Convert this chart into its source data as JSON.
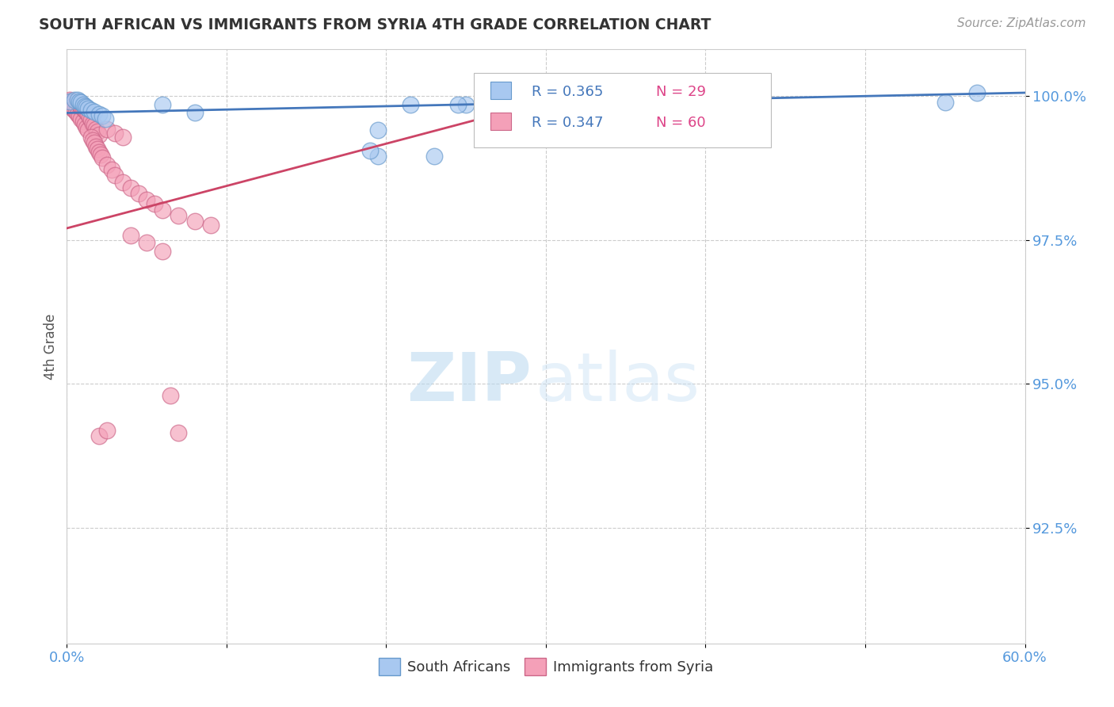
{
  "title": "SOUTH AFRICAN VS IMMIGRANTS FROM SYRIA 4TH GRADE CORRELATION CHART",
  "source": "Source: ZipAtlas.com",
  "ylabel": "4th Grade",
  "xlim": [
    0.0,
    0.6
  ],
  "ylim": [
    0.905,
    1.008
  ],
  "yticks": [
    0.925,
    0.95,
    0.975,
    1.0
  ],
  "ytick_labels": [
    "92.5%",
    "95.0%",
    "97.5%",
    "100.0%"
  ],
  "xtick_vals": [
    0.0,
    0.1,
    0.2,
    0.3,
    0.4,
    0.5,
    0.6
  ],
  "xtick_labels": [
    "0.0%",
    "",
    "",
    "",
    "",
    "",
    "60.0%"
  ],
  "legend_r1": "R = 0.365",
  "legend_n1": "N = 29",
  "legend_r2": "R = 0.347",
  "legend_n2": "N = 60",
  "color_sa": "#A8C8F0",
  "color_sa_edge": "#6699CC",
  "color_syria": "#F4A0B8",
  "color_syria_edge": "#CC6688",
  "color_sa_line": "#4477BB",
  "color_syria_line": "#CC4466",
  "background_color": "#FFFFFF",
  "grid_color": "#CCCCCC",
  "watermark_zip": "ZIP",
  "watermark_atlas": "atlas",
  "tick_color": "#5599DD",
  "title_color": "#333333",
  "source_color": "#999999",
  "ylabel_color": "#555555",
  "sa_x": [
    0.002,
    0.005,
    0.007,
    0.008,
    0.009,
    0.01,
    0.011,
    0.012,
    0.013,
    0.015,
    0.017,
    0.02,
    0.022,
    0.024,
    0.06,
    0.08,
    0.195,
    0.23,
    0.25,
    0.27,
    0.32,
    0.375,
    0.39,
    0.55,
    0.57,
    0.215,
    0.245,
    0.195,
    0.19
  ],
  "sa_y": [
    0.999,
    0.9992,
    0.9992,
    0.999,
    0.9988,
    0.9985,
    0.9982,
    0.998,
    0.9978,
    0.9975,
    0.9972,
    0.9968,
    0.9965,
    0.996,
    0.9985,
    0.997,
    0.9895,
    0.9895,
    0.9985,
    0.9985,
    0.998,
    0.9985,
    0.999,
    0.9988,
    1.0005,
    0.9985,
    0.9985,
    0.994,
    0.9905
  ],
  "syria_x": [
    0.002,
    0.003,
    0.004,
    0.005,
    0.006,
    0.003,
    0.004,
    0.005,
    0.006,
    0.007,
    0.008,
    0.009,
    0.01,
    0.011,
    0.012,
    0.013,
    0.007,
    0.008,
    0.009,
    0.01,
    0.011,
    0.012,
    0.013,
    0.014,
    0.015,
    0.016,
    0.017,
    0.018,
    0.019,
    0.02,
    0.015,
    0.016,
    0.017,
    0.018,
    0.019,
    0.02,
    0.021,
    0.022,
    0.025,
    0.028,
    0.03,
    0.035,
    0.04,
    0.045,
    0.05,
    0.055,
    0.06,
    0.07,
    0.08,
    0.09,
    0.04,
    0.05,
    0.06,
    0.065,
    0.07,
    0.025,
    0.03,
    0.035,
    0.02,
    0.025
  ],
  "syria_y": [
    0.9992,
    0.999,
    0.9988,
    0.9985,
    0.9982,
    0.998,
    0.9978,
    0.9975,
    0.9972,
    0.9968,
    0.9965,
    0.996,
    0.9955,
    0.995,
    0.9945,
    0.994,
    0.9988,
    0.9985,
    0.9982,
    0.9978,
    0.9975,
    0.9972,
    0.9968,
    0.9962,
    0.9958,
    0.9952,
    0.9948,
    0.9942,
    0.9938,
    0.9932,
    0.9928,
    0.9922,
    0.9918,
    0.9912,
    0.9908,
    0.9902,
    0.9898,
    0.9892,
    0.988,
    0.9872,
    0.9862,
    0.985,
    0.984,
    0.983,
    0.982,
    0.9812,
    0.9802,
    0.9792,
    0.9782,
    0.9775,
    0.9758,
    0.9745,
    0.973,
    0.948,
    0.9415,
    0.9942,
    0.9935,
    0.9928,
    0.941,
    0.942
  ]
}
